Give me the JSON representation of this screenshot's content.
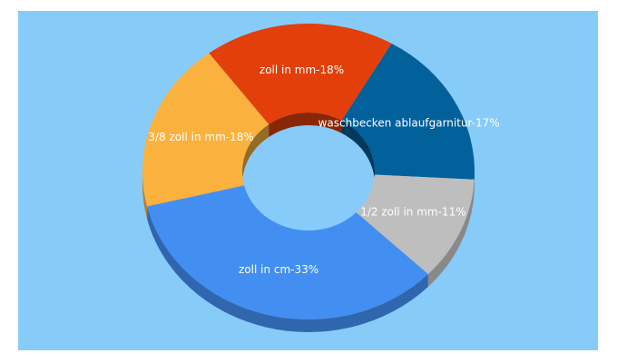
{
  "chart_data": {
    "type": "pie",
    "variant": "3d-donut",
    "title": "",
    "legend": "none",
    "background_color": "#87cbf9",
    "slices": [
      {
        "label": "waschbecken ablaufgarnitur-17%",
        "value": 17,
        "color": "#02609b"
      },
      {
        "label": "1/2 zoll in mm-11%",
        "value": 11,
        "color": "#bebebe"
      },
      {
        "label": "zoll in cm-33%",
        "value": 33,
        "color": "#428ef1"
      },
      {
        "label": "3/8 zoll in mm-18%",
        "value": 18,
        "color": "#fbb13d"
      },
      {
        "label": "zoll in mm-18%",
        "value": 18,
        "color": "#e23f0a"
      }
    ]
  }
}
